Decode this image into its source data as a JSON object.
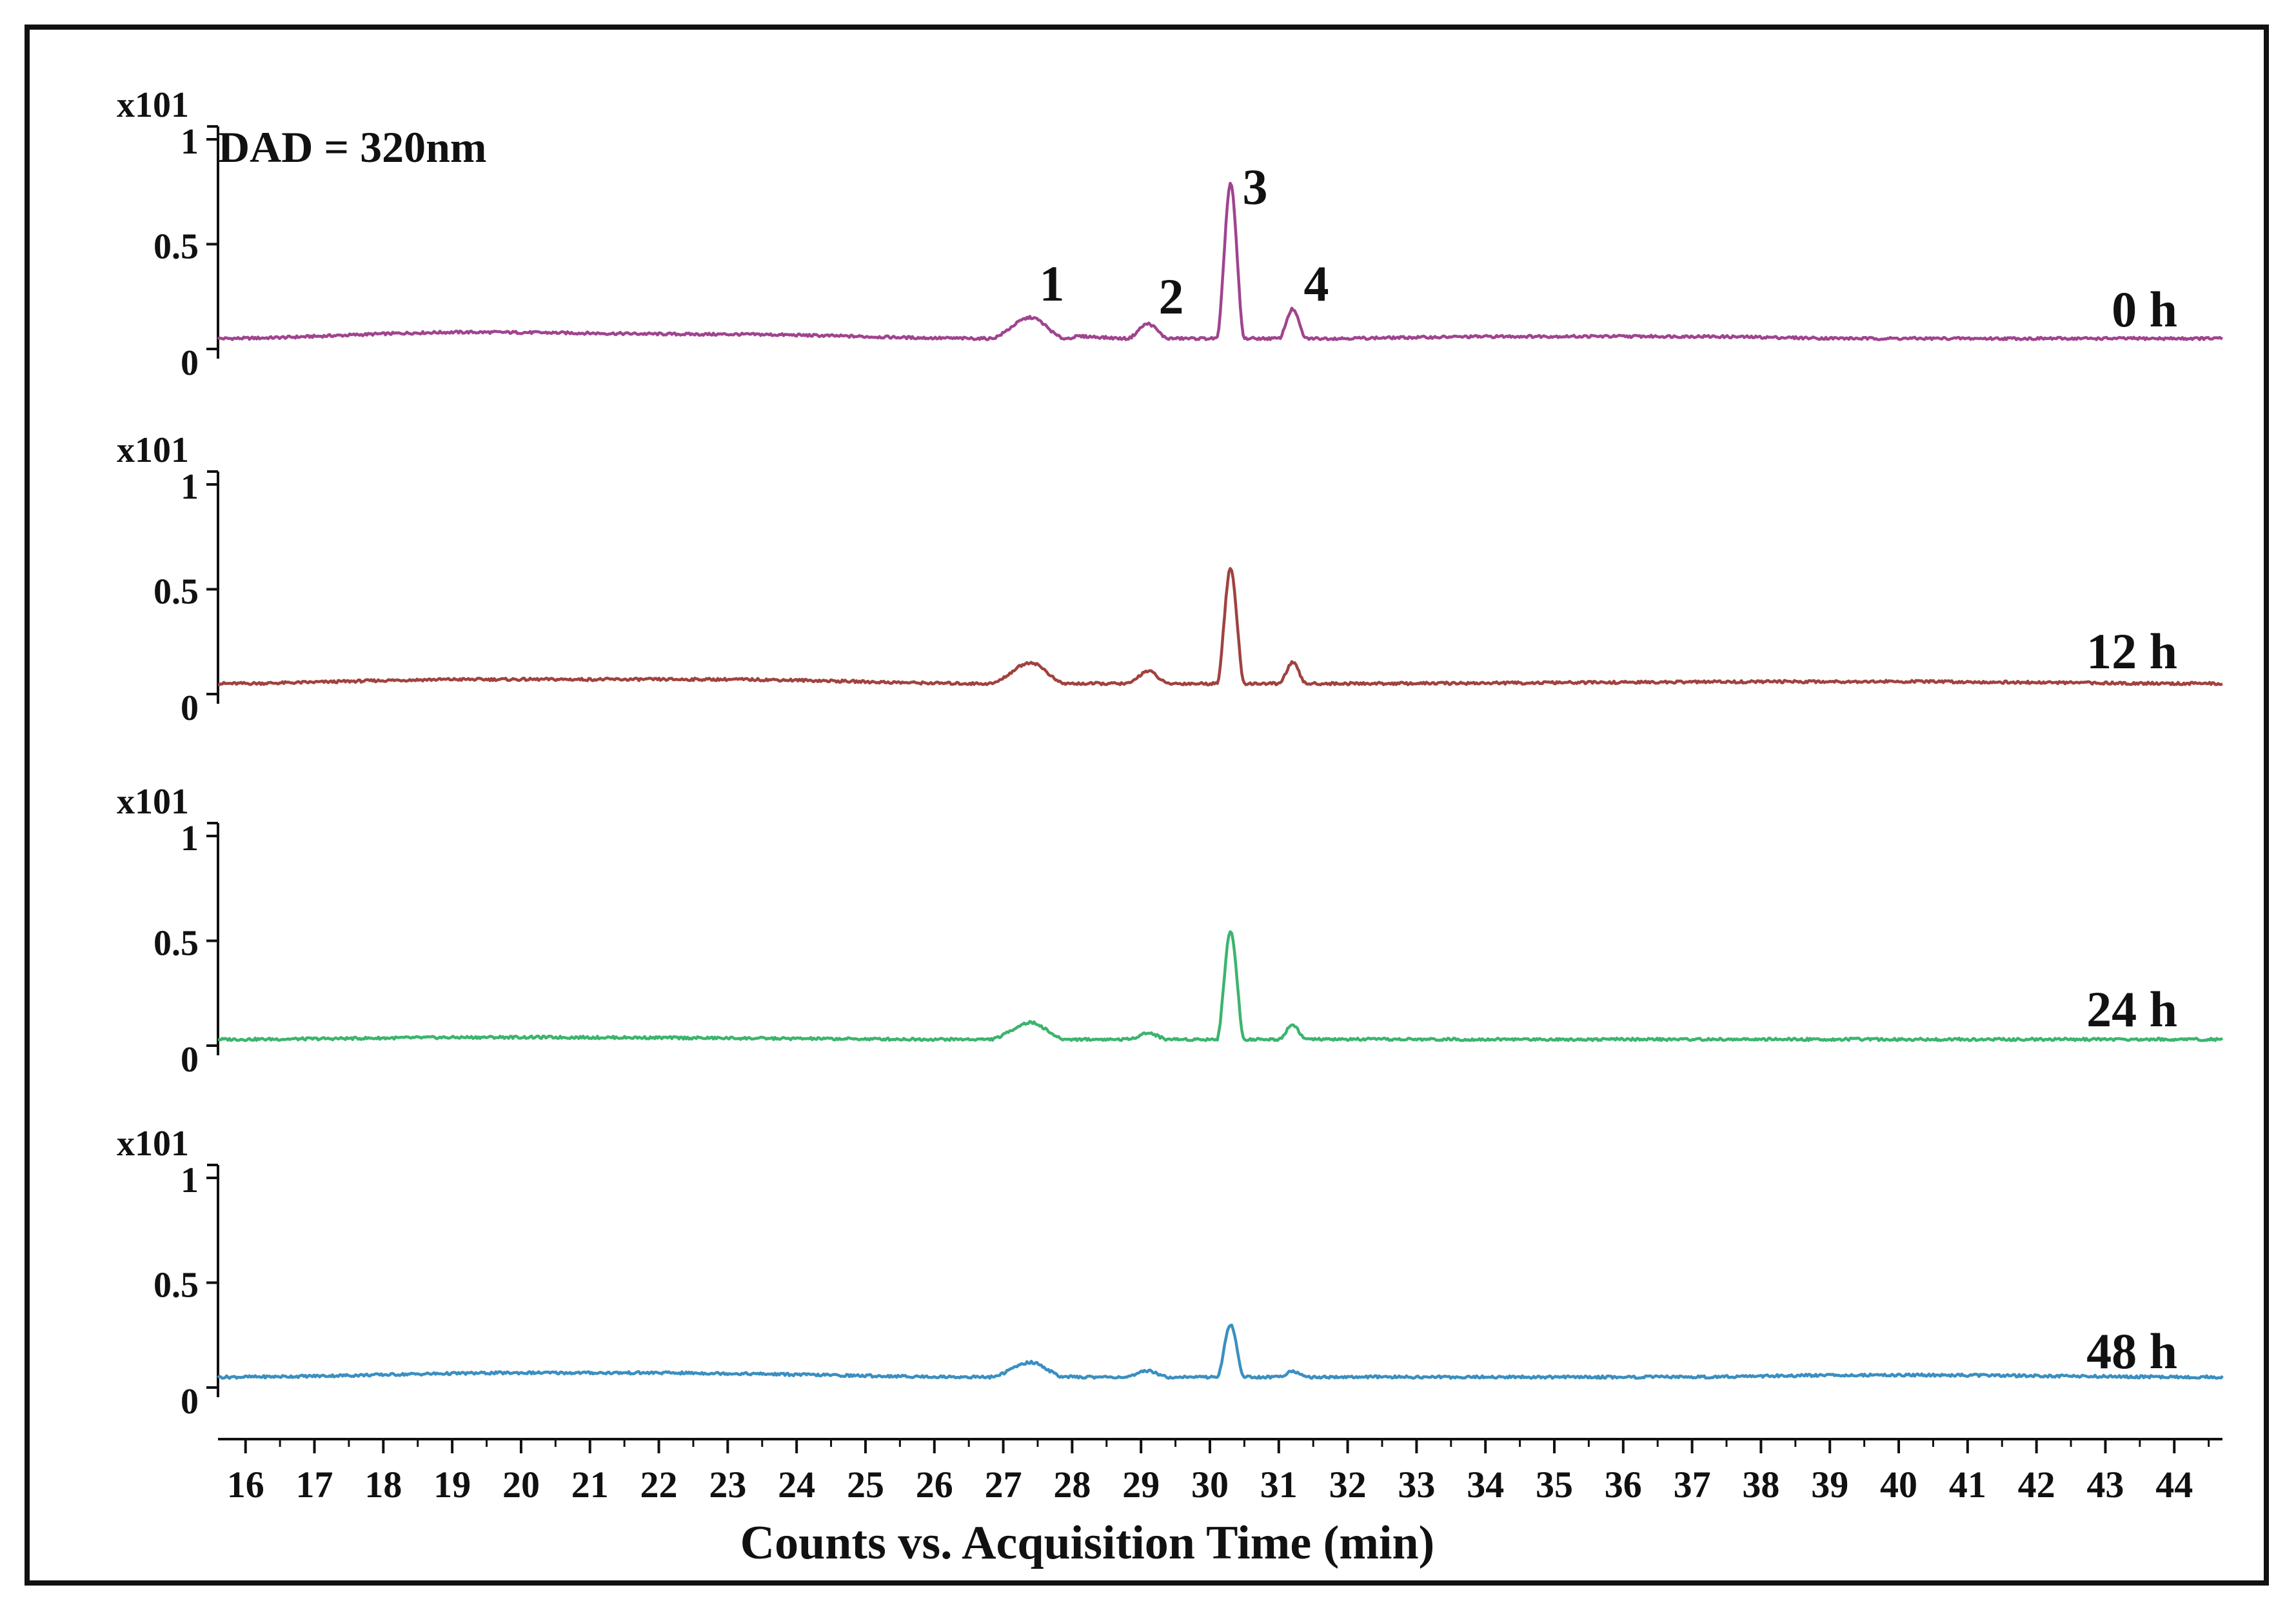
{
  "chart_data": {
    "type": "line",
    "annotation": "DAD = 320nm",
    "xlabel": "Counts vs. Acquisition Time (min)",
    "x_ticks": [
      16,
      17,
      18,
      19,
      20,
      21,
      22,
      23,
      24,
      25,
      26,
      27,
      28,
      29,
      30,
      31,
      32,
      33,
      34,
      35,
      36,
      37,
      38,
      39,
      40,
      41,
      42,
      43,
      44
    ],
    "xlim": [
      15.6,
      44.7
    ],
    "y_exponent_label": "x101",
    "y_ticks": [
      "0",
      "0.5",
      "1"
    ],
    "ylim": [
      0,
      1
    ],
    "peak_labels": [
      {
        "label": "1",
        "x": 27.4
      },
      {
        "label": "2",
        "x": 29.1
      },
      {
        "label": "3",
        "x": 30.3
      },
      {
        "label": "4",
        "x": 31.2
      }
    ],
    "panels": [
      {
        "name": "0 h",
        "color": "#a0448f",
        "baseline": 0.05,
        "x": [
          15.6,
          19.2,
          22.9,
          26.8,
          27.4,
          27.9,
          28.1,
          28.8,
          29.1,
          29.4,
          30.1,
          30.3,
          30.5,
          31.0,
          31.2,
          31.4,
          34.6,
          36.8,
          39.6,
          44.7
        ],
        "y": [
          0.05,
          0.08,
          0.07,
          0.05,
          0.15,
          0.05,
          0.06,
          0.05,
          0.12,
          0.05,
          0.05,
          0.79,
          0.05,
          0.05,
          0.19,
          0.05,
          0.06,
          0.06,
          0.05,
          0.05
        ]
      },
      {
        "name": "12 h",
        "color": "#a0423e",
        "baseline": 0.05,
        "x": [
          15.6,
          19.2,
          22.9,
          26.8,
          27.4,
          27.9,
          28.8,
          29.1,
          29.4,
          30.1,
          30.3,
          30.5,
          31.0,
          31.2,
          31.4,
          39.6,
          44.7
        ],
        "y": [
          0.05,
          0.07,
          0.07,
          0.05,
          0.15,
          0.05,
          0.05,
          0.11,
          0.05,
          0.05,
          0.6,
          0.05,
          0.05,
          0.15,
          0.05,
          0.06,
          0.05
        ]
      },
      {
        "name": "24 h",
        "color": "#3cb46e",
        "baseline": 0.03,
        "x": [
          15.6,
          19.8,
          26.8,
          27.4,
          27.9,
          28.8,
          29.1,
          29.4,
          30.1,
          30.3,
          30.5,
          31.0,
          31.2,
          31.4,
          44.7
        ],
        "y": [
          0.03,
          0.04,
          0.03,
          0.11,
          0.03,
          0.03,
          0.06,
          0.03,
          0.03,
          0.55,
          0.03,
          0.03,
          0.1,
          0.03,
          0.03
        ]
      },
      {
        "name": "48 h",
        "color": "#3a8fc0",
        "baseline": 0.05,
        "x": [
          15.6,
          20.1,
          21.8,
          26.8,
          27.4,
          27.9,
          28.8,
          29.1,
          29.4,
          30.1,
          30.3,
          30.5,
          31.0,
          31.2,
          31.4,
          36.7,
          39.6,
          44.7
        ],
        "y": [
          0.05,
          0.07,
          0.07,
          0.05,
          0.12,
          0.05,
          0.05,
          0.08,
          0.05,
          0.05,
          0.3,
          0.05,
          0.05,
          0.08,
          0.05,
          0.05,
          0.06,
          0.05
        ]
      }
    ]
  }
}
